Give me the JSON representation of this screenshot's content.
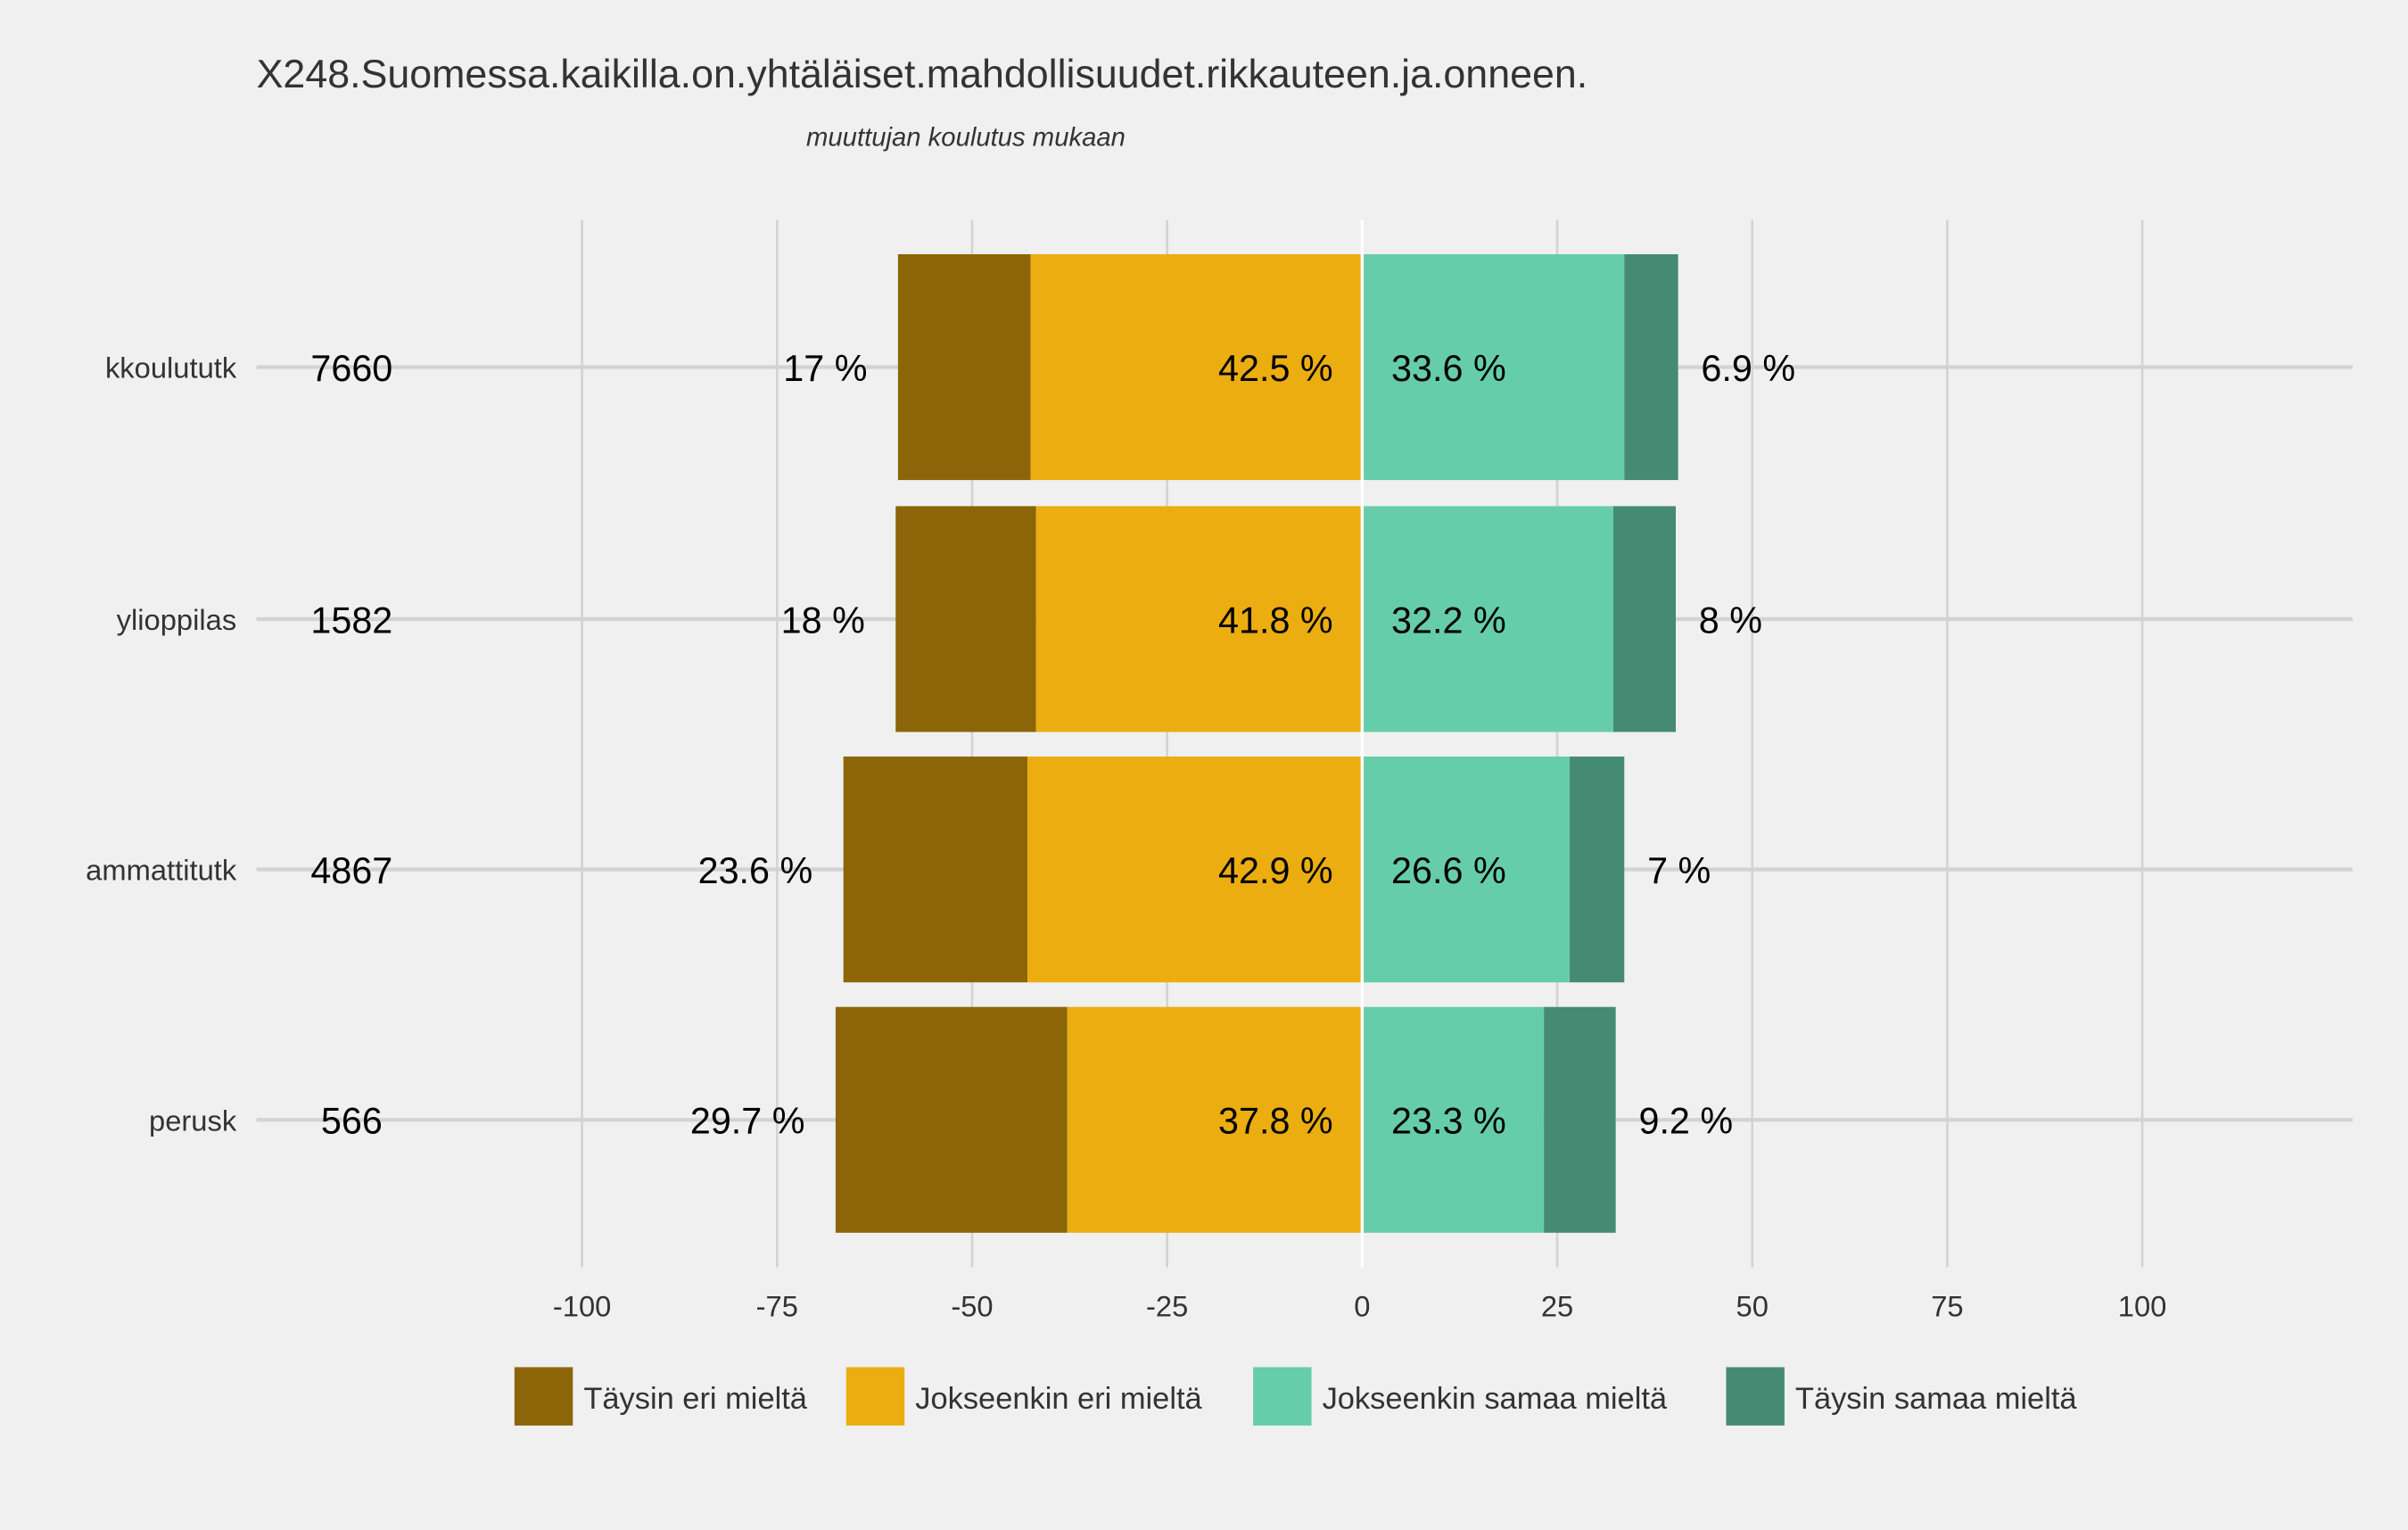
{
  "chart_data": {
    "type": "bar",
    "orientation": "horizontal-diverging-stacked",
    "title": "X248.Suomessa.kaikilla.on.yhtäläiset.mahdollisuudet.rikkauteen.ja.onneen.",
    "subtitle": "muuttujan  koulutus  mukaan",
    "xlim": [
      -125,
      127
    ],
    "x_ticks": [
      -100,
      -75,
      -50,
      -25,
      0,
      25,
      50,
      75,
      100
    ],
    "grid": true,
    "legend_position": "bottom",
    "categories": [
      "kkoulututk",
      "ylioppilas",
      "ammattitutk",
      "perusk"
    ],
    "counts": [
      "7660",
      "1582",
      "4867",
      "566"
    ],
    "series": [
      {
        "name": "Täysin eri mieltä",
        "color": "#8B6508",
        "side": "negative",
        "values": [
          17,
          18,
          23.6,
          29.7
        ],
        "labels": [
          "17 %",
          "18 %",
          "23.6 %",
          "29.7 %"
        ]
      },
      {
        "name": "Jokseenkin eri mieltä",
        "color": "#EBAD10",
        "side": "negative",
        "values": [
          42.5,
          41.8,
          42.9,
          37.8
        ],
        "labels": [
          "42.5 %",
          "41.8 %",
          "42.9 %",
          "37.8 %"
        ]
      },
      {
        "name": "Jokseenkin samaa mieltä",
        "color": "#66CDAA",
        "side": "positive",
        "values": [
          33.6,
          32.2,
          26.6,
          23.3
        ],
        "labels": [
          "33.6 %",
          "32.2 %",
          "26.6 %",
          "23.3 %"
        ]
      },
      {
        "name": "Täysin samaa mieltä",
        "color": "#458B74",
        "side": "positive",
        "values": [
          6.9,
          8,
          7,
          9.2
        ],
        "labels": [
          "6.9 %",
          "8 %",
          "7 %",
          "9.2 %"
        ]
      }
    ]
  }
}
